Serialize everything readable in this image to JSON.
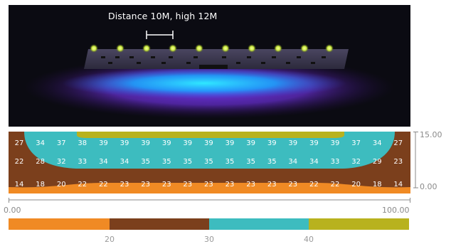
{
  "render": {
    "caption": "Distance 10M, high 12M"
  },
  "iso_map": {
    "rows": [
      [
        27,
        34,
        37,
        38,
        39,
        39,
        39,
        39,
        39,
        39,
        39,
        39,
        39,
        39,
        39,
        39,
        37,
        34,
        27
      ],
      [
        22,
        28,
        32,
        33,
        34,
        34,
        35,
        35,
        35,
        35,
        35,
        35,
        35,
        34,
        34,
        33,
        32,
        29,
        23
      ],
      [
        14,
        18,
        20,
        22,
        22,
        23,
        23,
        23,
        23,
        23,
        23,
        23,
        23,
        23,
        22,
        22,
        20,
        18,
        14
      ]
    ]
  },
  "axes": {
    "x_min": "0.00",
    "x_max": "100.00",
    "y_top": "15.00",
    "y_bottom": "0.00"
  },
  "legend": {
    "segments": [
      {
        "color": "#f08a24",
        "from": 0,
        "to": 1
      },
      {
        "color": "#7b3f1c",
        "from": 1,
        "to": 2
      },
      {
        "color": "#3dbcbf",
        "from": 2,
        "to": 3
      },
      {
        "color": "#b8b21e",
        "from": 3,
        "to": 4
      }
    ],
    "labels": [
      "20",
      "30",
      "40"
    ]
  },
  "colors": {
    "orange": "#f08a24",
    "brown": "#7b3f1c",
    "teal": "#3dbcbf",
    "olive": "#b8b21e"
  }
}
